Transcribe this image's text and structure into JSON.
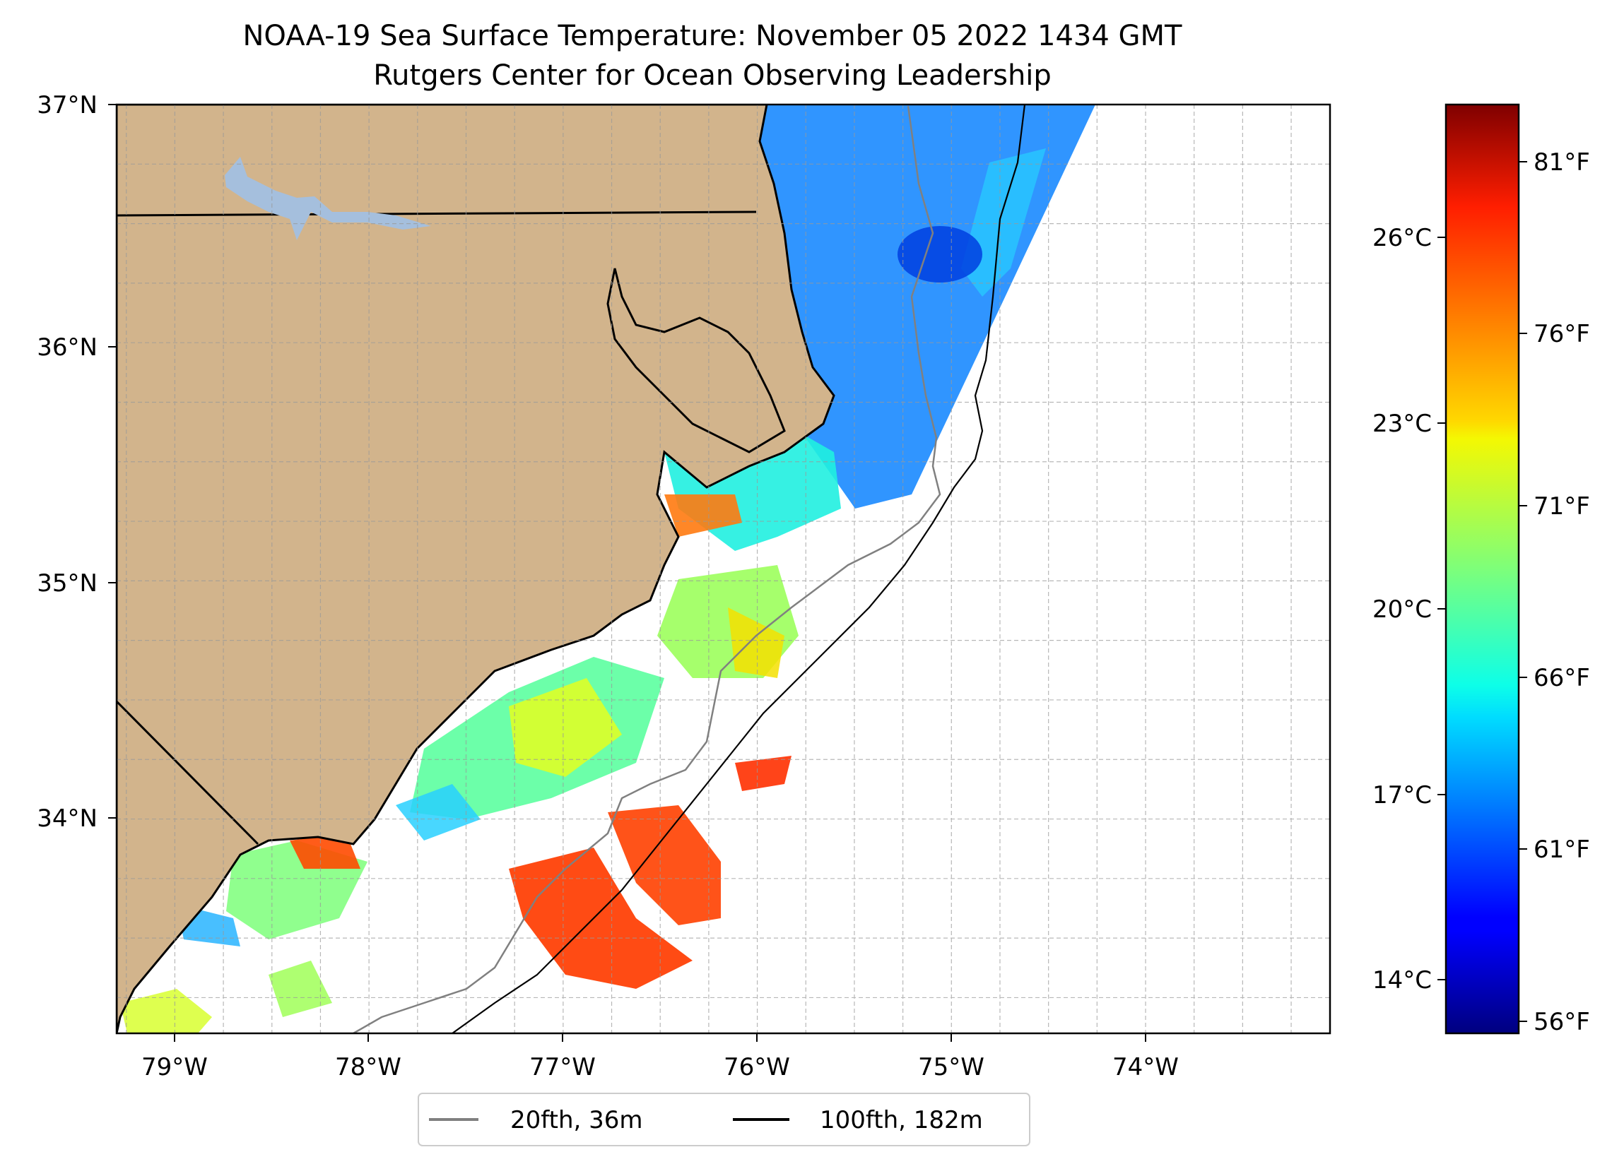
{
  "title": {
    "line1": "NOAA-19 Sea Surface Temperature: November 05 2022 1434 GMT",
    "line2": "Rutgers Center for Ocean Observing Leadership"
  },
  "map": {
    "lon_range": [
      -79.3,
      -73.05
    ],
    "lat_range": [
      33.1,
      37.0
    ],
    "lon_ticks": [
      {
        "value": -79,
        "label": "79°W"
      },
      {
        "value": -78,
        "label": "78°W"
      },
      {
        "value": -77,
        "label": "77°W"
      },
      {
        "value": -76,
        "label": "76°W"
      },
      {
        "value": -75,
        "label": "75°W"
      },
      {
        "value": -74,
        "label": "74°W"
      }
    ],
    "lat_ticks": [
      {
        "value": 37,
        "label": "37°N"
      },
      {
        "value": 36,
        "label": "36°N"
      },
      {
        "value": 35,
        "label": "35°N"
      },
      {
        "value": 34,
        "label": "34°N"
      }
    ],
    "grid": true,
    "land_color": "#d2b48c",
    "lake_color": "#a5bfdd",
    "ocean_color": "#ffffff"
  },
  "colorbar": {
    "colormap": "jet",
    "range_F": [
      55.4,
      83.5
    ],
    "celsius_ticks": [
      {
        "value": 14,
        "label": "14°C"
      },
      {
        "value": 17,
        "label": "17°C"
      },
      {
        "value": 20,
        "label": "20°C"
      },
      {
        "value": 23,
        "label": "23°C"
      },
      {
        "value": 26,
        "label": "26°C"
      }
    ],
    "fahrenheit_ticks": [
      {
        "value": 56,
        "label": "56°F"
      },
      {
        "value": 61,
        "label": "61°F"
      },
      {
        "value": 66,
        "label": "66°F"
      },
      {
        "value": 71,
        "label": "71°F"
      },
      {
        "value": 76,
        "label": "76°F"
      },
      {
        "value": 81,
        "label": "81°F"
      }
    ]
  },
  "legend": {
    "placement": "below map",
    "entries": [
      {
        "label": "20fth, 36m",
        "color": "#808080"
      },
      {
        "label": "100fth, 182m",
        "color": "#000000"
      }
    ]
  }
}
